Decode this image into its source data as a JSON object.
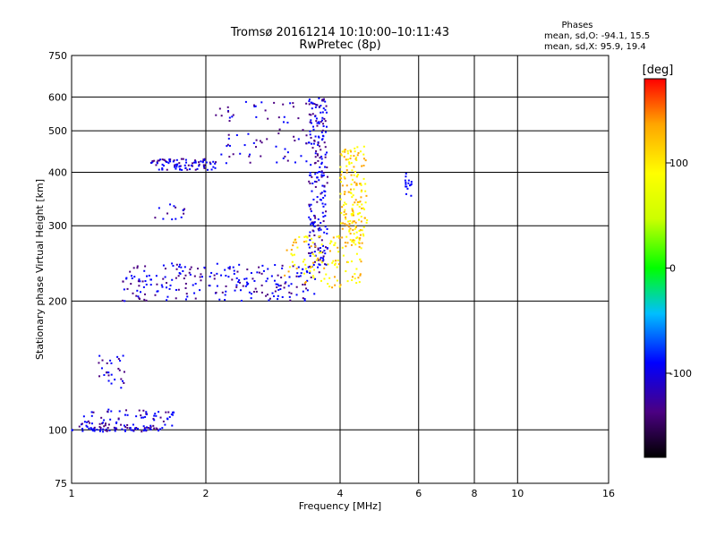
{
  "chart_data": {
    "type": "scatter",
    "title": "Tromsø 20161214 10:10:00–10:11:43",
    "subtitle": "RwPretec (8p)",
    "xlabel": "Frequency [MHz]",
    "ylabel": "Stationary phase Virtual Height [km]",
    "x_scale": "log",
    "y_scale": "log",
    "xlim": [
      1,
      16
    ],
    "ylim": [
      75,
      750
    ],
    "x_ticks": [
      1,
      2,
      4,
      6,
      8,
      10,
      16
    ],
    "y_ticks": [
      75,
      100,
      200,
      300,
      400,
      500,
      600,
      750
    ],
    "x_gridlines": [
      2,
      4,
      6,
      8,
      10
    ],
    "y_gridlines": [
      100,
      200,
      300,
      400,
      500,
      600
    ],
    "grid": true,
    "phases_box": {
      "title": "Phases",
      "line_o": "mean, sd,O: -94.1, 15.5",
      "line_x": "mean, sd,X:  95.9, 19.4"
    },
    "colorbar": {
      "label": "[deg]",
      "min": -180,
      "max": 180,
      "ticks": [
        100,
        0,
        -100
      ],
      "colors": [
        "#000000",
        "#4b0082",
        "#0000ff",
        "#00ffff",
        "#00ff00",
        "#ffff00",
        "#ffa500",
        "#ff0000"
      ]
    },
    "series": [
      {
        "segments": [
          {
            "x_range": [
              1.0,
              1.6
            ],
            "height_range": [
              99,
              102
            ],
            "phase": -100,
            "count": 70
          },
          {
            "x_range": [
              1.05,
              1.7
            ],
            "height_range": [
              102,
              112
            ],
            "phase": -100,
            "count": 70
          },
          {
            "x_range": [
              1.15,
              1.32
            ],
            "height_range": [
              125,
              150
            ],
            "phase": -100,
            "count": 28
          },
          {
            "x_range": [
              1.3,
              3.6
            ],
            "height_range": [
              200,
              245
            ],
            "phase": -100,
            "count": 230
          },
          {
            "x_range": [
              1.5,
              2.1
            ],
            "height_range": [
              405,
              430
            ],
            "phase": -100,
            "count": 90
          },
          {
            "x_range": [
              2.1,
              3.6
            ],
            "height_range": [
              420,
              590
            ],
            "phase": -100,
            "count": 80
          },
          {
            "x_range": [
              1.5,
              1.8
            ],
            "height_range": [
              310,
              340
            ],
            "phase": -100,
            "count": 14
          },
          {
            "x_range": [
              3.4,
              3.75
            ],
            "height_range": [
              240,
              600
            ],
            "phase": -100,
            "count": 220
          },
          {
            "x_range": [
              3.0,
              4.5
            ],
            "height_range": [
              215,
              285
            ],
            "phase": 100,
            "count": 130
          },
          {
            "x_range": [
              4.0,
              4.6
            ],
            "height_range": [
              280,
              460
            ],
            "phase": 100,
            "count": 160
          },
          {
            "x_range": [
              5.6,
              5.8
            ],
            "height_range": [
              350,
              400
            ],
            "phase": -80,
            "count": 16
          }
        ]
      }
    ]
  }
}
